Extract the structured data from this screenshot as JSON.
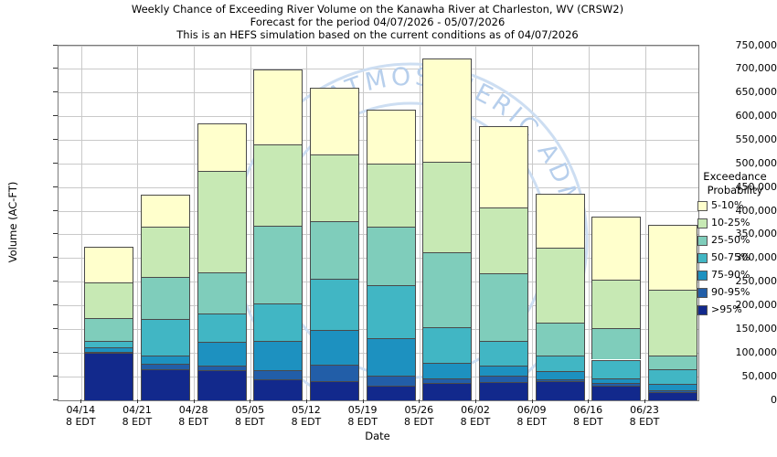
{
  "chart_data": {
    "type": "bar",
    "stacked": true,
    "title_line1": "Weekly Chance of Exceeding River Volume on the Kanawha River at Charleston, WV (CRSW2)",
    "title_line2": "Forecast for the period 04/07/2026 - 05/07/2026",
    "title_line3": "This is an HEFS simulation based on the current conditions as of 04/07/2026",
    "xlabel": "Date",
    "ylabel": "Volume (AC-FT)",
    "ylim": [
      0,
      750000
    ],
    "ytick_step": 50000,
    "grid": true,
    "legend_position": "right",
    "ytick_labels": [
      "0",
      "50,000",
      "100,000",
      "150,000",
      "200,000",
      "250,000",
      "300,000",
      "350,000",
      "400,000",
      "450,000",
      "500,000",
      "550,000",
      "600,000",
      "650,000",
      "700,000",
      "750,000"
    ],
    "categories": [
      {
        "date": "04/14",
        "time": "8 EDT"
      },
      {
        "date": "04/21",
        "time": "8 EDT"
      },
      {
        "date": "04/28",
        "time": "8 EDT"
      },
      {
        "date": "05/05",
        "time": "8 EDT"
      },
      {
        "date": "05/12",
        "time": "8 EDT"
      },
      {
        "date": "05/19",
        "time": "8 EDT"
      },
      {
        "date": "05/26",
        "time": "8 EDT"
      },
      {
        "date": "06/02",
        "time": "8 EDT"
      },
      {
        "date": "06/09",
        "time": "8 EDT"
      },
      {
        "date": "06/16",
        "time": "8 EDT"
      },
      {
        "date": "06/23",
        "time": "8 EDT"
      }
    ],
    "series": [
      {
        "name": ">95%",
        "color": "#12298C",
        "values": [
          100000,
          65000,
          64000,
          44000,
          40000,
          30000,
          37000,
          39000,
          40000,
          31000,
          17000
        ]
      },
      {
        "name": "90-95%",
        "color": "#225EA8",
        "values": [
          2000,
          12000,
          9000,
          19000,
          36000,
          23000,
          9000,
          14000,
          5000,
          5000,
          5000
        ]
      },
      {
        "name": "75-90%",
        "color": "#1D91C0",
        "values": [
          10000,
          17000,
          50000,
          62000,
          73000,
          79000,
          33000,
          21000,
          17000,
          11000,
          13000
        ]
      },
      {
        "name": "50-75%",
        "color": "#41B6C4",
        "values": [
          13000,
          78000,
          61000,
          80000,
          109000,
          112000,
          76000,
          51000,
          32000,
          39000,
          30000
        ]
      },
      {
        "name": "25-50%",
        "color": "#7FCDBB",
        "values": [
          49000,
          89000,
          86000,
          165000,
          120000,
          123000,
          159000,
          143000,
          71000,
          66000,
          29000
        ]
      },
      {
        "name": "10-25%",
        "color": "#C7E9B4",
        "values": [
          75000,
          106000,
          215000,
          171000,
          142000,
          134000,
          190000,
          139000,
          158000,
          103000,
          140000
        ]
      },
      {
        "name": "5-10%",
        "color": "#FFFFCC",
        "values": [
          76000,
          67000,
          100000,
          159000,
          142000,
          114000,
          218000,
          173000,
          114000,
          133000,
          138000
        ]
      }
    ],
    "bar_totals": [
      325000,
      434000,
      585000,
      700000,
      662000,
      615000,
      722000,
      580000,
      437000,
      388000,
      372000
    ]
  },
  "legend": {
    "title_line1": "Exceedance",
    "title_line2": "Probability",
    "items": [
      {
        "label": "5-10%",
        "color": "#FFFFCC"
      },
      {
        "label": "10-25%",
        "color": "#C7E9B4"
      },
      {
        "label": "25-50%",
        "color": "#7FCDBB"
      },
      {
        "label": "50-75%",
        "color": "#41B6C4"
      },
      {
        "label": "75-90%",
        "color": "#1D91C0"
      },
      {
        "label": "90-95%",
        "color": "#225EA8"
      },
      {
        "label": ">95%",
        "color": "#12298C"
      }
    ]
  },
  "watermark": {
    "text": "ATMOSPHERIC ADMINIST",
    "arc_color": "#cddef2",
    "text_color": "#b7cfec"
  }
}
